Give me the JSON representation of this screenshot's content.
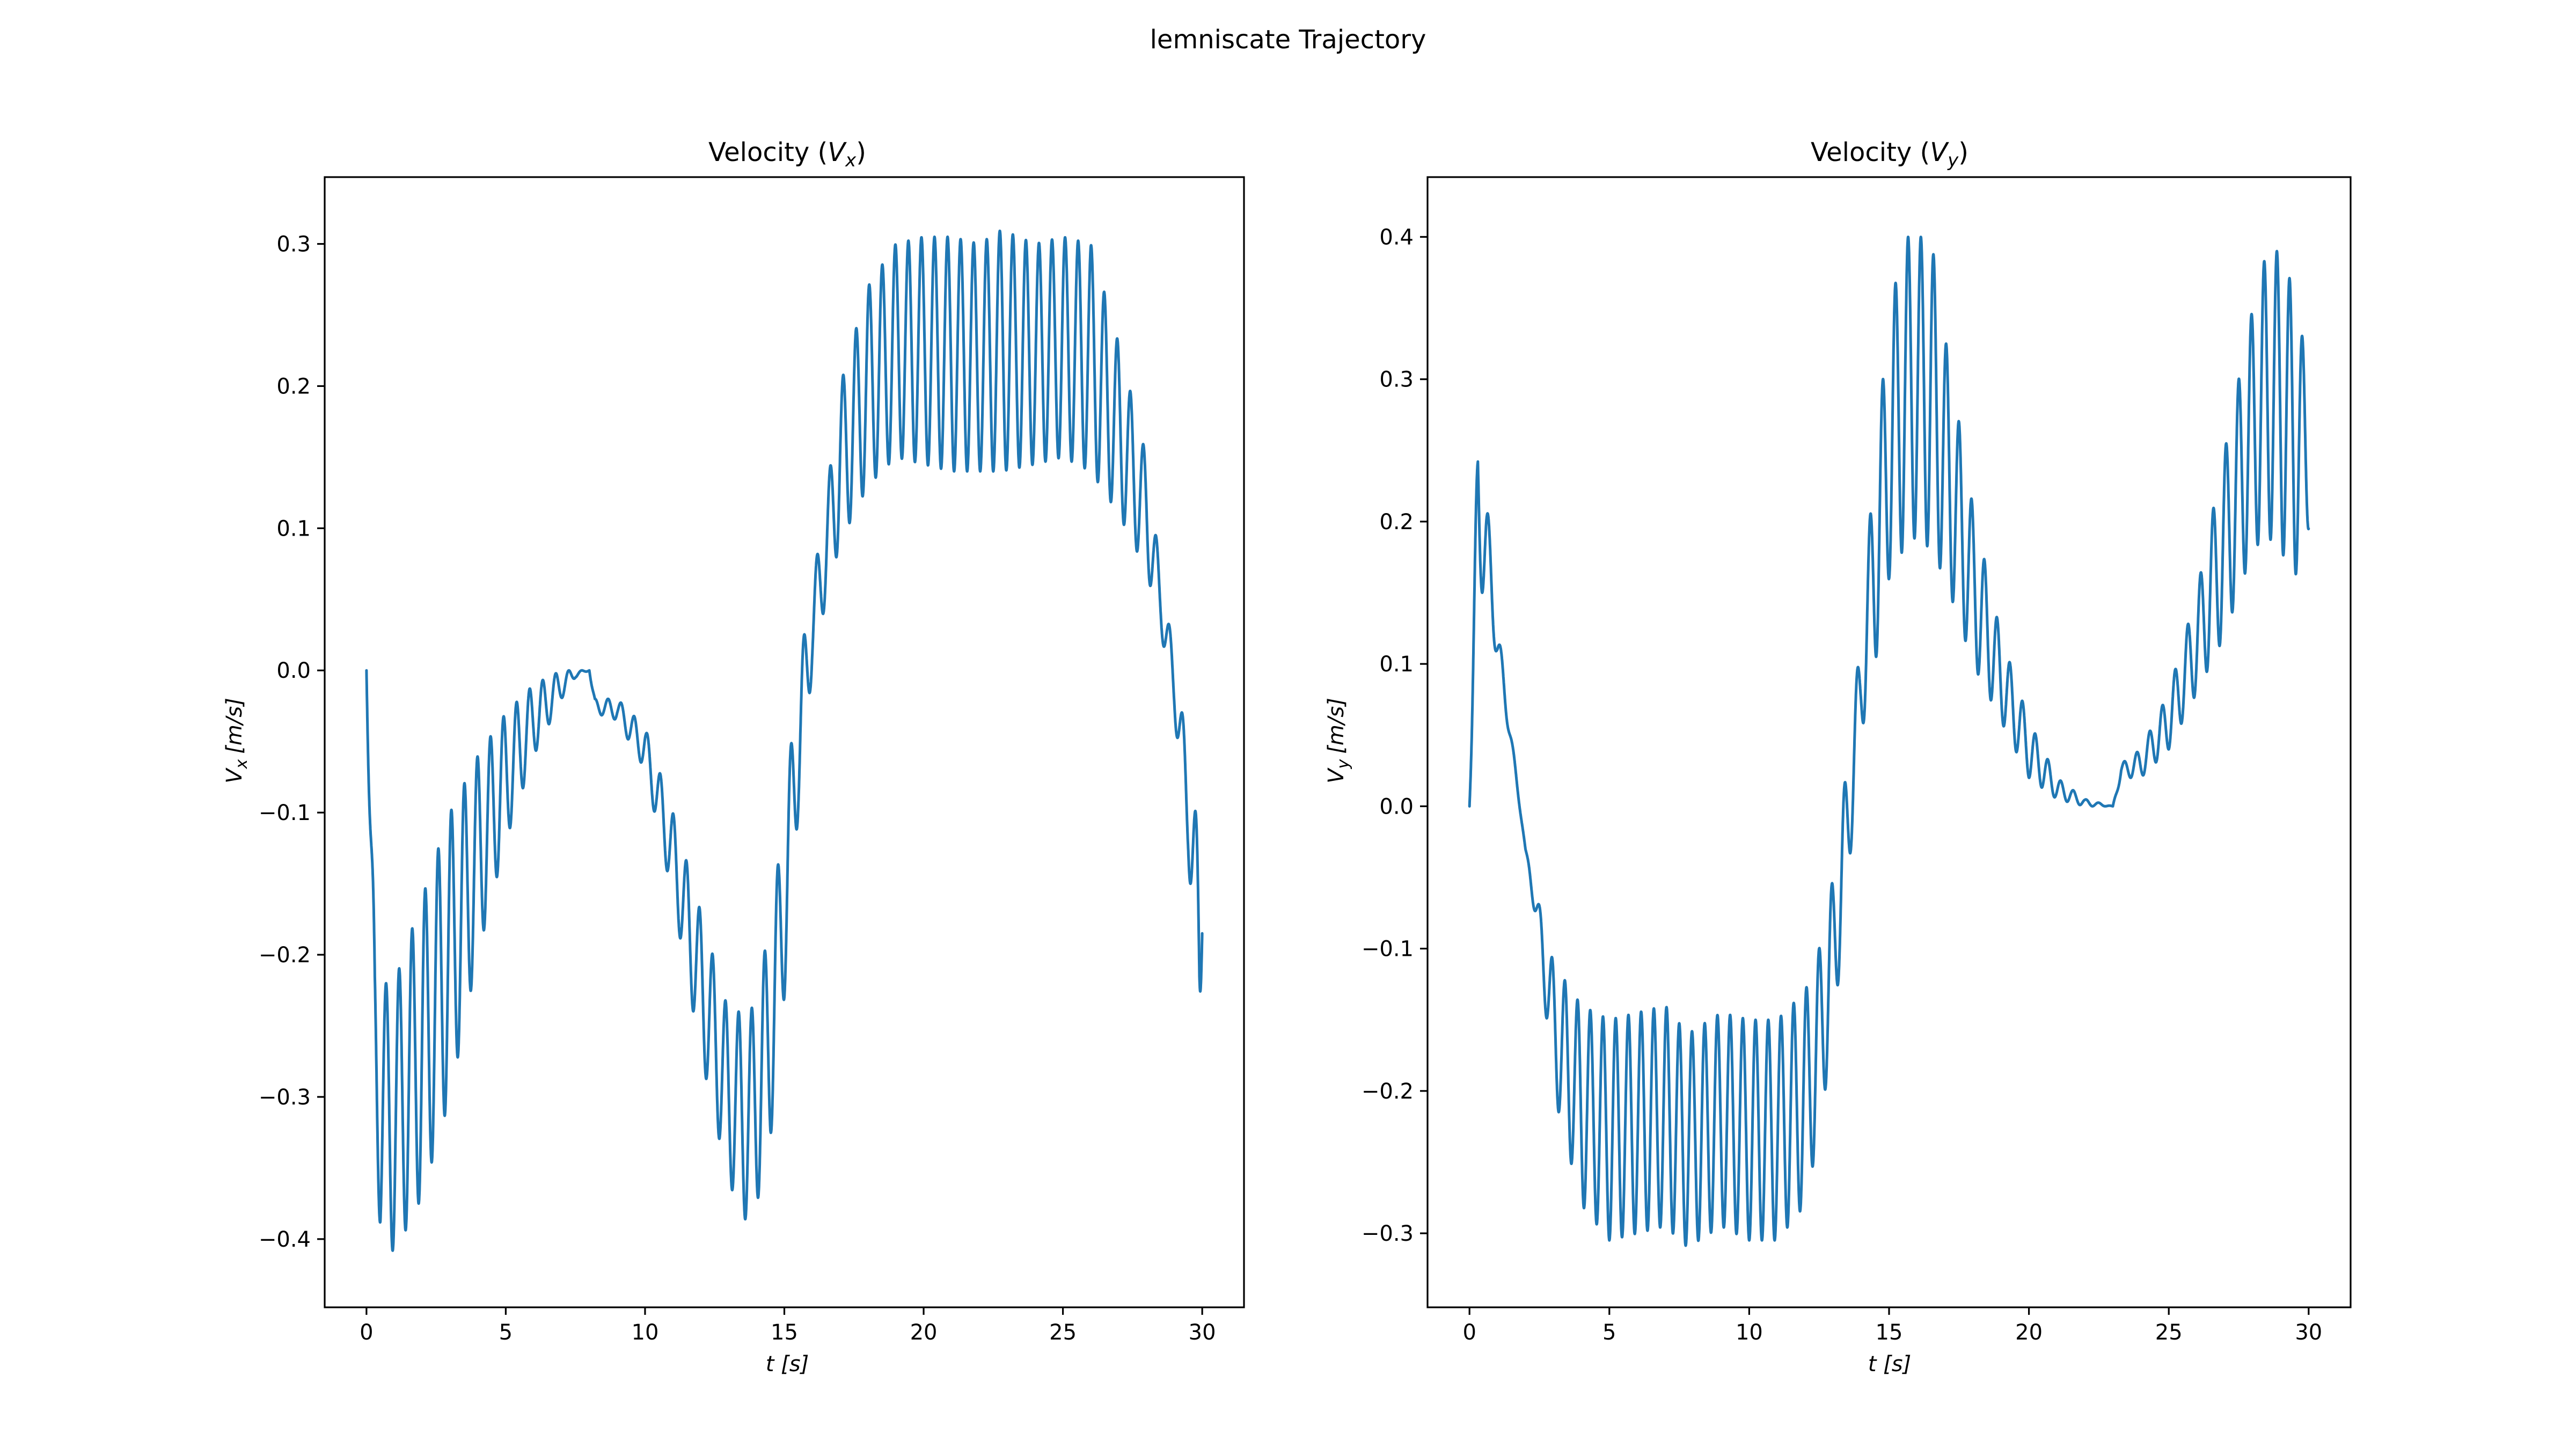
{
  "figure_title": "lemniscate Trajectory",
  "colors": {
    "series": "#1f77b4",
    "axes": "#000000",
    "background": "#ffffff"
  },
  "chart_data": [
    {
      "type": "line",
      "title_main": "Velocity (",
      "title_var": "V",
      "title_sub": "x",
      "title_close": ")",
      "xlabel_var": "t",
      "xlabel_unit": "[s]",
      "ylabel_var": "V",
      "ylabel_sub": "x",
      "ylabel_unit": "[m/s]",
      "xlim": [
        -1.5,
        31.5
      ],
      "ylim": [
        -0.448,
        0.347
      ],
      "xticks": [
        0,
        5,
        10,
        15,
        20,
        25,
        30
      ],
      "xtick_labels": [
        "0",
        "5",
        "10",
        "15",
        "20",
        "25",
        "30"
      ],
      "yticks": [
        -0.4,
        -0.3,
        -0.2,
        -0.1,
        0.0,
        0.1,
        0.2,
        0.3
      ],
      "ytick_labels": [
        "−0.4",
        "−0.3",
        "−0.2",
        "−0.1",
        "0.0",
        "0.1",
        "0.2",
        "0.3"
      ],
      "series": [
        {
          "x": [
            0,
            0.3,
            0.5,
            1.0,
            2.0,
            3.0,
            4.0,
            5.0,
            6.0,
            7.0,
            7.5,
            8.0,
            8.2,
            9.0,
            10.0,
            11.0,
            12.0,
            13.0,
            13.8,
            14.5,
            15.0,
            15.5,
            16.0,
            16.5,
            17.0,
            18.0,
            19.0,
            20.0,
            21.0,
            22.0,
            22.8,
            24.0,
            25.0,
            26.0,
            27.0,
            28.0,
            28.5,
            29.0,
            29.5,
            29.9,
            30.0
          ],
          "lower": [
            0,
            -0.33,
            -0.395,
            -0.41,
            -0.37,
            -0.3,
            -0.2,
            -0.12,
            -0.06,
            -0.02,
            -0.005,
            0.0,
            -0.03,
            -0.035,
            -0.07,
            -0.16,
            -0.27,
            -0.36,
            -0.395,
            -0.33,
            -0.23,
            -0.1,
            0.0,
            0.05,
            0.09,
            0.13,
            0.15,
            0.145,
            0.14,
            0.14,
            0.14,
            0.145,
            0.15,
            0.14,
            0.11,
            0.07,
            0.03,
            -0.03,
            -0.13,
            -0.275,
            -0.185
          ],
          "upper": [
            0,
            -0.19,
            -0.22,
            -0.22,
            -0.16,
            -0.1,
            -0.06,
            -0.03,
            -0.01,
            0.0,
            0.0,
            0.0,
            -0.02,
            -0.02,
            -0.04,
            -0.1,
            -0.17,
            -0.24,
            -0.24,
            -0.18,
            -0.1,
            0.0,
            0.06,
            0.12,
            0.2,
            0.27,
            0.3,
            0.305,
            0.305,
            0.3,
            0.31,
            0.3,
            0.305,
            0.3,
            0.23,
            0.15,
            0.07,
            0.01,
            -0.06,
            -0.12,
            -0.185
          ],
          "cycles": 64
        }
      ]
    },
    {
      "type": "line",
      "title_main": "Velocity (",
      "title_var": "V",
      "title_sub": "y",
      "title_close": ")",
      "xlabel_var": "t",
      "xlabel_unit": "[s]",
      "ylabel_var": "V",
      "ylabel_sub": "y",
      "ylabel_unit": "[m/s]",
      "xlim": [
        -1.5,
        31.5
      ],
      "ylim": [
        -0.352,
        0.442
      ],
      "xticks": [
        0,
        5,
        10,
        15,
        20,
        25,
        30
      ],
      "xtick_labels": [
        "0",
        "5",
        "10",
        "15",
        "20",
        "25",
        "30"
      ],
      "yticks": [
        -0.3,
        -0.2,
        -0.1,
        0.0,
        0.1,
        0.2,
        0.3,
        0.4
      ],
      "ytick_labels": [
        "−0.3",
        "−0.2",
        "−0.1",
        "0.0",
        "0.1",
        "0.2",
        "0.3",
        "0.4"
      ],
      "series": [
        {
          "x": [
            0,
            0.3,
            0.6,
            1.0,
            1.5,
            2.0,
            2.5,
            3.0,
            4.0,
            5.0,
            6.0,
            7.0,
            7.8,
            9.0,
            10.0,
            11.0,
            12.0,
            12.5,
            13.0,
            13.5,
            14.0,
            14.5,
            15.0,
            15.5,
            16.0,
            16.5,
            17.0,
            18.0,
            19.0,
            20.0,
            21.0,
            22.0,
            23.0,
            23.3,
            24.0,
            25.0,
            26.0,
            27.0,
            28.0,
            28.5,
            29.0,
            29.5,
            30.0
          ],
          "lower": [
            0,
            0.15,
            0.15,
            0.1,
            0.04,
            -0.03,
            -0.1,
            -0.2,
            -0.28,
            -0.305,
            -0.3,
            -0.295,
            -0.31,
            -0.295,
            -0.305,
            -0.305,
            -0.28,
            -0.23,
            -0.16,
            -0.06,
            0.05,
            0.1,
            0.16,
            0.18,
            0.19,
            0.18,
            0.16,
            0.1,
            0.06,
            0.02,
            0.005,
            0.0,
            0.0,
            0.02,
            0.02,
            0.04,
            0.08,
            0.12,
            0.18,
            0.19,
            0.18,
            0.16,
            0.195
          ],
          "upper": [
            0,
            0.27,
            0.22,
            0.13,
            0.05,
            -0.03,
            -0.07,
            -0.11,
            -0.14,
            -0.15,
            -0.145,
            -0.14,
            -0.16,
            -0.145,
            -0.15,
            -0.15,
            -0.13,
            -0.1,
            -0.05,
            0.03,
            0.12,
            0.25,
            0.34,
            0.4,
            0.4,
            0.4,
            0.33,
            0.21,
            0.12,
            0.06,
            0.02,
            0.005,
            0.0,
            0.03,
            0.04,
            0.08,
            0.15,
            0.25,
            0.35,
            0.39,
            0.39,
            0.36,
            0.305
          ],
          "cycles": 66
        }
      ]
    }
  ]
}
